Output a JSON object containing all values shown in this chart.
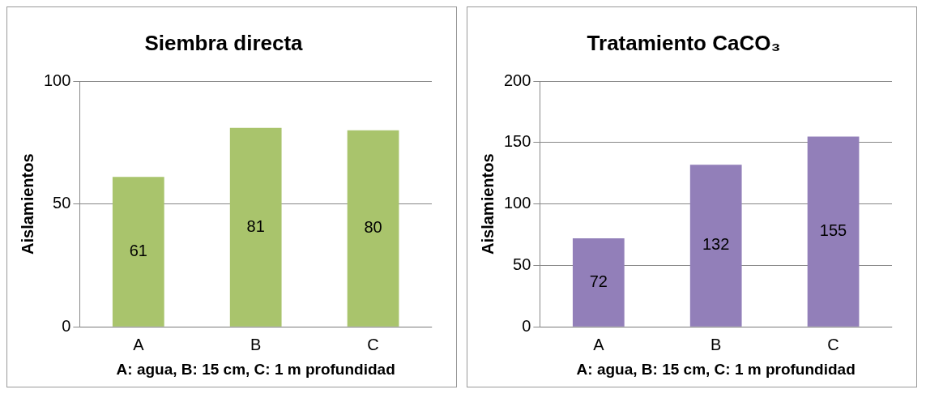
{
  "chart_data": [
    {
      "type": "bar",
      "title": "Siembra directa",
      "ylabel": "Aislamientos",
      "xlabel": "A: agua, B: 15 cm, C: 1 m profundidad",
      "categories": [
        "A",
        "B",
        "C"
      ],
      "values": [
        61,
        81,
        80
      ],
      "color": "#a9c46c",
      "ylim": [
        0,
        100
      ],
      "yticks": [
        0,
        50,
        100
      ],
      "grid": "y",
      "data_labels": true
    },
    {
      "type": "bar",
      "title": "Tratamiento CaCO₃",
      "ylabel": "Aislamientos",
      "xlabel": "A: agua, B: 15 cm, C: 1 m profundidad",
      "categories": [
        "A",
        "B",
        "C"
      ],
      "values": [
        72,
        132,
        155
      ],
      "color": "#927fb9",
      "ylim": [
        0,
        200
      ],
      "yticks": [
        0,
        50,
        100,
        150,
        200
      ],
      "grid": "y",
      "data_labels": true
    }
  ]
}
